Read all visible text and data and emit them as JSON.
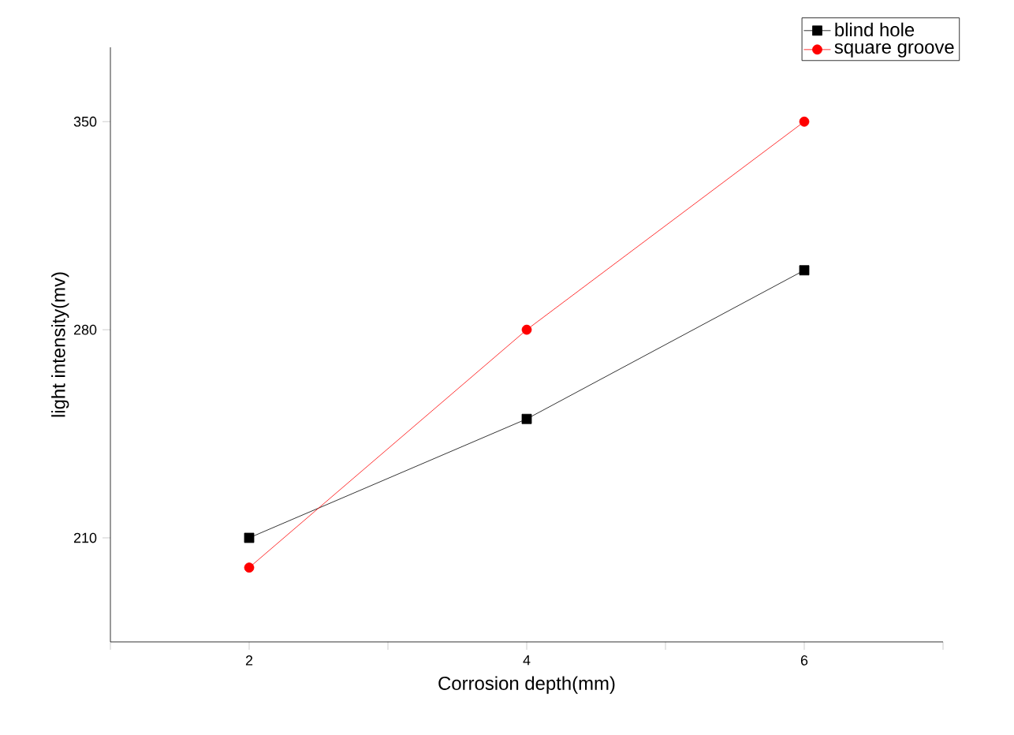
{
  "chart_data": {
    "type": "line",
    "xlabel": "Corrosion depth(mm)",
    "ylabel": "light intensity(mv)",
    "x": [
      2,
      4,
      6
    ],
    "series": [
      {
        "name": "blind hole",
        "color": "#000000",
        "values": [
          210,
          250,
          300
        ],
        "marker": "square"
      },
      {
        "name": "square groove",
        "color": "#ff0000",
        "values": [
          200,
          280,
          350
        ],
        "marker": "circle"
      }
    ],
    "xlim": [
      1,
      7
    ],
    "xticks": [
      {
        "value": 1,
        "label": null
      },
      2,
      {
        "value": 3,
        "label": null
      },
      4,
      {
        "value": 5,
        "label": null
      },
      6,
      {
        "value": 7,
        "label": null
      }
    ],
    "ylim": [
      175,
      375
    ],
    "yticks": [
      210,
      280,
      350
    ],
    "grid": false,
    "legend": "top right",
    "line_style": "solid"
  }
}
